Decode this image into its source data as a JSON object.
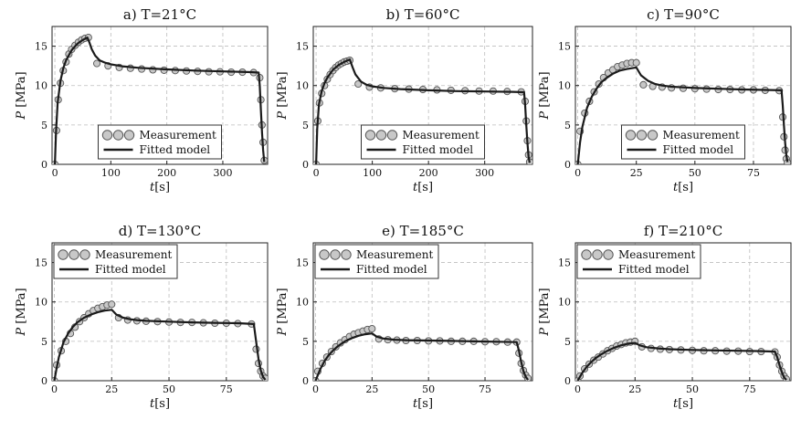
{
  "figure": {
    "x_unit": "[s]",
    "y_unit": "[MPa]",
    "x_var": "t",
    "y_var": "P"
  },
  "legend": {
    "measurement_label": "Measurement",
    "model_label": "Fitted model"
  },
  "colors": {
    "marker_fill": "#c8c8c8",
    "marker_edge": "#555555",
    "model_line": "#1a1a1a",
    "grid": "#bdbdbd"
  },
  "chart_data": [
    {
      "type": "line",
      "title": "a) T=21°C",
      "xlabel": "t[s]",
      "ylabel": "P [MPa]",
      "xlim": [
        -5,
        380
      ],
      "ylim": [
        0,
        17.5
      ],
      "xticks": [
        0,
        100,
        200,
        300
      ],
      "yticks": [
        0,
        5,
        10,
        15
      ],
      "legend_position": "bottom-center",
      "grid": true,
      "series": [
        {
          "name": "Measurement",
          "style": "markers",
          "x": [
            0,
            3,
            6,
            10,
            15,
            20,
            25,
            30,
            36,
            42,
            48,
            54,
            60,
            75,
            95,
            115,
            135,
            155,
            175,
            195,
            215,
            235,
            255,
            275,
            295,
            315,
            335,
            355,
            366,
            368,
            370,
            372,
            374
          ],
          "y": [
            0,
            4.3,
            8.2,
            10.3,
            11.9,
            13.0,
            14.0,
            14.6,
            15.1,
            15.5,
            15.8,
            16.0,
            16.1,
            12.8,
            12.5,
            12.3,
            12.2,
            12.1,
            12.0,
            11.95,
            11.9,
            11.85,
            11.8,
            11.75,
            11.75,
            11.7,
            11.7,
            11.65,
            11.0,
            8.2,
            5.0,
            2.8,
            0.5
          ]
        },
        {
          "name": "Fitted model",
          "style": "line",
          "x": [
            0,
            2,
            5,
            10,
            15,
            20,
            30,
            40,
            50,
            58,
            62,
            66,
            72,
            80,
            90,
            100,
            120,
            150,
            200,
            250,
            300,
            350,
            364,
            366,
            368,
            370,
            372,
            374
          ],
          "y": [
            0,
            4.0,
            7.8,
            10.6,
            12.2,
            13.2,
            14.5,
            15.3,
            15.8,
            16.1,
            15.4,
            14.6,
            13.8,
            13.2,
            12.9,
            12.7,
            12.45,
            12.25,
            12.05,
            11.9,
            11.8,
            11.7,
            11.65,
            10.0,
            7.0,
            4.0,
            1.8,
            0.3
          ]
        }
      ]
    },
    {
      "type": "line",
      "title": "b) T=60°C",
      "xlabel": "t[s]",
      "ylabel": "P [MPa]",
      "xlim": [
        -5,
        385
      ],
      "ylim": [
        0,
        17.5
      ],
      "xticks": [
        0,
        100,
        200,
        300
      ],
      "yticks": [
        0,
        5,
        10,
        15
      ],
      "legend_position": "bottom-center",
      "grid": true,
      "series": [
        {
          "name": "Measurement",
          "style": "markers",
          "x": [
            0,
            3,
            6,
            10,
            15,
            20,
            25,
            30,
            35,
            40,
            45,
            50,
            55,
            60,
            75,
            95,
            115,
            140,
            165,
            190,
            215,
            240,
            265,
            290,
            315,
            340,
            365,
            372,
            374,
            376,
            378,
            380
          ],
          "y": [
            0,
            5.5,
            7.8,
            9.0,
            10.0,
            10.8,
            11.4,
            11.9,
            12.3,
            12.6,
            12.8,
            13.0,
            13.1,
            13.2,
            10.2,
            9.8,
            9.7,
            9.6,
            9.55,
            9.5,
            9.45,
            9.4,
            9.35,
            9.3,
            9.3,
            9.25,
            9.2,
            8.0,
            5.5,
            3.0,
            1.2,
            0.3
          ]
        },
        {
          "name": "Fitted model",
          "style": "line",
          "x": [
            0,
            2,
            5,
            10,
            15,
            20,
            30,
            40,
            50,
            60,
            65,
            70,
            80,
            90,
            100,
            120,
            150,
            200,
            250,
            300,
            350,
            370,
            372,
            374,
            376,
            378,
            380
          ],
          "y": [
            0,
            4.5,
            7.6,
            9.3,
            10.3,
            11.0,
            12.0,
            12.6,
            13.0,
            13.3,
            12.3,
            11.4,
            10.5,
            10.1,
            9.9,
            9.7,
            9.55,
            9.4,
            9.3,
            9.25,
            9.2,
            9.15,
            7.5,
            5.0,
            2.7,
            1.0,
            0.2
          ]
        }
      ]
    },
    {
      "type": "line",
      "title": "c) T=90°C",
      "xlabel": "t[s]",
      "ylabel": "P [MPa]",
      "xlim": [
        -1,
        91
      ],
      "ylim": [
        0,
        17.5
      ],
      "xticks": [
        0,
        25,
        50,
        75
      ],
      "yticks": [
        0,
        5,
        10,
        15
      ],
      "legend_position": "bottom-center",
      "grid": true,
      "series": [
        {
          "name": "Measurement",
          "style": "markers",
          "x": [
            0,
            1,
            3,
            5,
            7,
            9,
            11,
            13,
            15,
            17,
            19,
            21,
            23,
            25,
            28,
            32,
            36,
            40,
            45,
            50,
            55,
            60,
            65,
            70,
            75,
            80,
            86,
            87.5,
            88,
            88.5,
            89,
            89.5
          ],
          "y": [
            0,
            4.2,
            6.5,
            8.0,
            9.2,
            10.2,
            11.0,
            11.6,
            12.0,
            12.4,
            12.6,
            12.8,
            12.9,
            12.9,
            10.1,
            9.9,
            9.8,
            9.7,
            9.65,
            9.6,
            9.55,
            9.5,
            9.5,
            9.45,
            9.45,
            9.4,
            9.35,
            6.0,
            3.5,
            1.8,
            0.7,
            0.2
          ]
        },
        {
          "name": "Fitted model",
          "style": "line",
          "x": [
            0,
            1,
            2,
            4,
            6,
            8,
            10,
            12,
            15,
            18,
            21,
            24,
            25,
            27,
            30,
            33,
            36,
            40,
            50,
            60,
            70,
            80,
            87,
            87.5,
            88,
            88.5,
            89,
            89.5
          ],
          "y": [
            0,
            2.8,
            4.8,
            7.2,
            8.6,
            9.6,
            10.4,
            10.9,
            11.5,
            11.9,
            12.1,
            12.25,
            12.3,
            11.3,
            10.6,
            10.2,
            10.0,
            9.85,
            9.7,
            9.6,
            9.5,
            9.45,
            9.4,
            7.5,
            5.0,
            2.8,
            1.2,
            0.3
          ]
        }
      ]
    },
    {
      "type": "line",
      "title": "d) T=130°C",
      "xlabel": "t[s]",
      "ylabel": "P [MPa]",
      "xlim": [
        -1,
        93
      ],
      "ylim": [
        0,
        17.5
      ],
      "xticks": [
        0,
        25,
        50,
        75
      ],
      "yticks": [
        0,
        5,
        10,
        15
      ],
      "legend_position": "top-left",
      "grid": true,
      "series": [
        {
          "name": "Measurement",
          "style": "markers",
          "x": [
            0,
            1,
            3,
            5,
            7,
            9,
            11,
            13,
            15,
            17,
            19,
            21,
            23,
            25,
            28,
            32,
            36,
            40,
            45,
            50,
            55,
            60,
            65,
            70,
            75,
            80,
            86,
            88,
            89,
            90,
            91,
            92
          ],
          "y": [
            0,
            2.0,
            3.8,
            5.0,
            6.0,
            6.8,
            7.5,
            8.0,
            8.5,
            8.9,
            9.2,
            9.4,
            9.6,
            9.7,
            8.0,
            7.7,
            7.6,
            7.55,
            7.5,
            7.45,
            7.4,
            7.4,
            7.35,
            7.3,
            7.3,
            7.25,
            7.2,
            4.0,
            2.2,
            1.2,
            0.6,
            0.3
          ]
        },
        {
          "name": "Fitted model",
          "style": "line",
          "x": [
            0,
            1,
            2,
            4,
            6,
            8,
            10,
            13,
            16,
            19,
            22,
            25,
            27,
            30,
            33,
            36,
            40,
            50,
            60,
            70,
            80,
            87,
            88,
            89,
            90,
            91,
            92
          ],
          "y": [
            0,
            1.6,
            3.0,
            4.9,
            6.0,
            6.8,
            7.4,
            8.0,
            8.4,
            8.7,
            8.9,
            9.0,
            8.4,
            8.0,
            7.8,
            7.7,
            7.6,
            7.5,
            7.4,
            7.35,
            7.3,
            7.2,
            5.0,
            2.8,
            1.3,
            0.5,
            0.1
          ]
        }
      ]
    },
    {
      "type": "line",
      "title": "e) T=185°C",
      "xlabel": "t[s]",
      "ylabel": "P [MPa]",
      "xlim": [
        -1,
        96
      ],
      "ylim": [
        0,
        17.5
      ],
      "xticks": [
        0,
        25,
        50,
        75
      ],
      "yticks": [
        0,
        5,
        10,
        15
      ],
      "legend_position": "top-left",
      "grid": true,
      "series": [
        {
          "name": "Measurement",
          "style": "markers",
          "x": [
            0,
            1,
            3,
            5,
            7,
            9,
            11,
            13,
            15,
            17,
            19,
            21,
            23,
            25,
            28,
            32,
            36,
            40,
            45,
            50,
            55,
            60,
            65,
            70,
            75,
            80,
            85,
            89,
            90,
            91,
            92,
            93,
            94
          ],
          "y": [
            0,
            1.2,
            2.2,
            3.0,
            3.7,
            4.3,
            4.8,
            5.2,
            5.6,
            5.9,
            6.1,
            6.3,
            6.5,
            6.6,
            5.3,
            5.2,
            5.15,
            5.1,
            5.1,
            5.05,
            5.05,
            5.0,
            5.0,
            5.0,
            4.95,
            4.95,
            4.9,
            4.9,
            3.5,
            2.2,
            1.3,
            0.7,
            0.3
          ]
        },
        {
          "name": "Fitted model",
          "style": "line",
          "x": [
            0,
            2,
            4,
            6,
            8,
            10,
            13,
            16,
            19,
            22,
            25,
            27,
            30,
            35,
            40,
            50,
            60,
            70,
            80,
            89,
            90,
            91,
            92,
            93,
            94
          ],
          "y": [
            0,
            1.4,
            2.5,
            3.3,
            3.9,
            4.4,
            5.0,
            5.4,
            5.7,
            5.9,
            6.0,
            5.6,
            5.35,
            5.2,
            5.15,
            5.1,
            5.05,
            5.0,
            4.95,
            4.9,
            3.8,
            2.4,
            1.2,
            0.5,
            0.1
          ]
        }
      ]
    },
    {
      "type": "line",
      "title": "f) T=210°C",
      "xlabel": "t[s]",
      "ylabel": "P [MPa]",
      "xlim": [
        -1,
        93
      ],
      "ylim": [
        0,
        17.5
      ],
      "xticks": [
        0,
        25,
        50,
        75
      ],
      "yticks": [
        0,
        5,
        10,
        15
      ],
      "legend_position": "top-left",
      "grid": true,
      "series": [
        {
          "name": "Measurement",
          "style": "markers",
          "x": [
            0,
            1,
            3,
            5,
            7,
            9,
            11,
            13,
            15,
            17,
            19,
            21,
            23,
            25,
            28,
            32,
            36,
            40,
            45,
            50,
            55,
            60,
            65,
            70,
            75,
            80,
            86,
            87,
            88,
            89,
            90,
            91
          ],
          "y": [
            0,
            0.6,
            1.5,
            2.1,
            2.6,
            3.0,
            3.4,
            3.8,
            4.1,
            4.4,
            4.6,
            4.8,
            4.9,
            5.0,
            4.3,
            4.1,
            4.0,
            3.95,
            3.9,
            3.85,
            3.8,
            3.8,
            3.75,
            3.75,
            3.7,
            3.7,
            3.65,
            3.0,
            2.0,
            1.2,
            0.6,
            0.2
          ]
        },
        {
          "name": "Fitted model",
          "style": "line",
          "x": [
            0,
            2,
            4,
            6,
            8,
            10,
            13,
            16,
            19,
            22,
            25,
            27,
            30,
            35,
            40,
            50,
            60,
            70,
            80,
            86,
            87,
            88,
            89,
            90,
            91
          ],
          "y": [
            0,
            1.0,
            1.8,
            2.4,
            2.9,
            3.3,
            3.8,
            4.2,
            4.5,
            4.7,
            4.8,
            4.5,
            4.25,
            4.1,
            4.0,
            3.9,
            3.85,
            3.8,
            3.75,
            3.7,
            3.0,
            2.0,
            1.1,
            0.4,
            0.1
          ]
        }
      ]
    }
  ]
}
